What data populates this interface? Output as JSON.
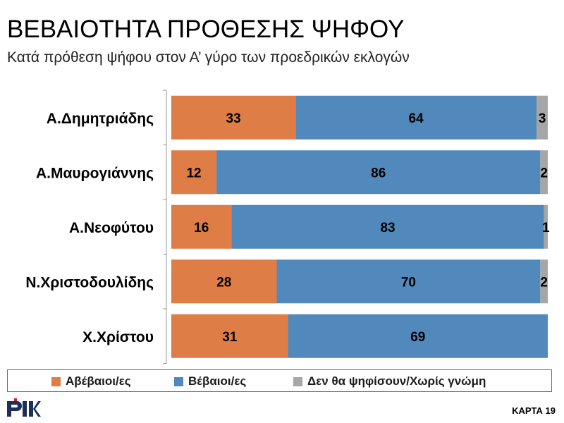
{
  "header": {
    "title": "ΒΕΒΑΙΟΤΗΤΑ ΠΡΟΘΕΣΗΣ ΨΗΦΟΥ",
    "subtitle": "Κατά πρόθεση ψήφου στον Α’ γύρο των προεδρικών εκλογών"
  },
  "chart_data": {
    "type": "bar",
    "orientation": "horizontal",
    "stacked": true,
    "categories": [
      "Α.Δημητριάδης",
      "Α.Μαυρογιάννης",
      "Α.Νεοφύτου",
      "Ν.Χριστοδουλίδης",
      "Χ.Χρίστου"
    ],
    "series": [
      {
        "name": "Αβέβαιοι/ες",
        "values": [
          33,
          12,
          16,
          28,
          31
        ],
        "color": "#de7d45"
      },
      {
        "name": "Βέβαιοι/ες",
        "values": [
          64,
          86,
          83,
          70,
          69
        ],
        "color": "#5289bd"
      },
      {
        "name": "Δεν θα ψηφίσουν/Χωρίς γνώμη",
        "values": [
          3,
          2,
          1,
          2,
          null
        ],
        "color": "#a6a6a6"
      }
    ],
    "xlim": [
      0,
      100
    ],
    "data_labels": true,
    "legend_position": "bottom",
    "grid": false
  },
  "footer": {
    "logo_text": "ΡΙΚ",
    "card_label": "ΚΑΡΤΑ 19"
  }
}
